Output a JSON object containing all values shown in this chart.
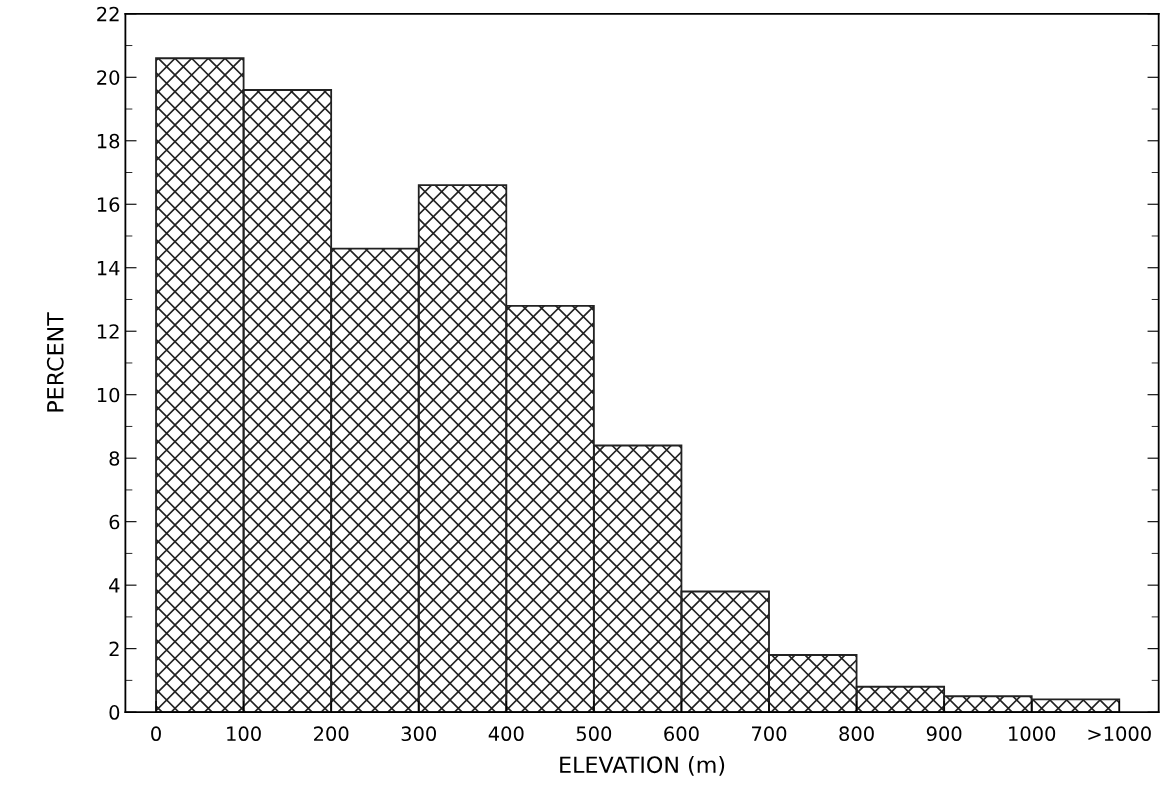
{
  "chart_data": {
    "type": "histogram",
    "xlabel": "ELEVATION (m)",
    "ylabel": "PERCENT",
    "bins": [
      0,
      100,
      200,
      300,
      400,
      500,
      600,
      700,
      800,
      900,
      1000,
      1100
    ],
    "values": [
      20.6,
      19.6,
      14.6,
      16.6,
      12.8,
      8.4,
      3.8,
      1.8,
      0.8,
      0.5,
      0.4
    ],
    "color": "#222222",
    "xlim": [
      -35,
      1145
    ],
    "ylim": [
      0,
      22
    ],
    "xticks": [
      0,
      100,
      200,
      300,
      400,
      500,
      600,
      700,
      800,
      900,
      1000,
      {
        "value": 1100,
        "label": ">1000"
      }
    ],
    "yticks": [
      0,
      2,
      4,
      6,
      8,
      10,
      12,
      14,
      16,
      18,
      20,
      22
    ],
    "grid": false
  }
}
